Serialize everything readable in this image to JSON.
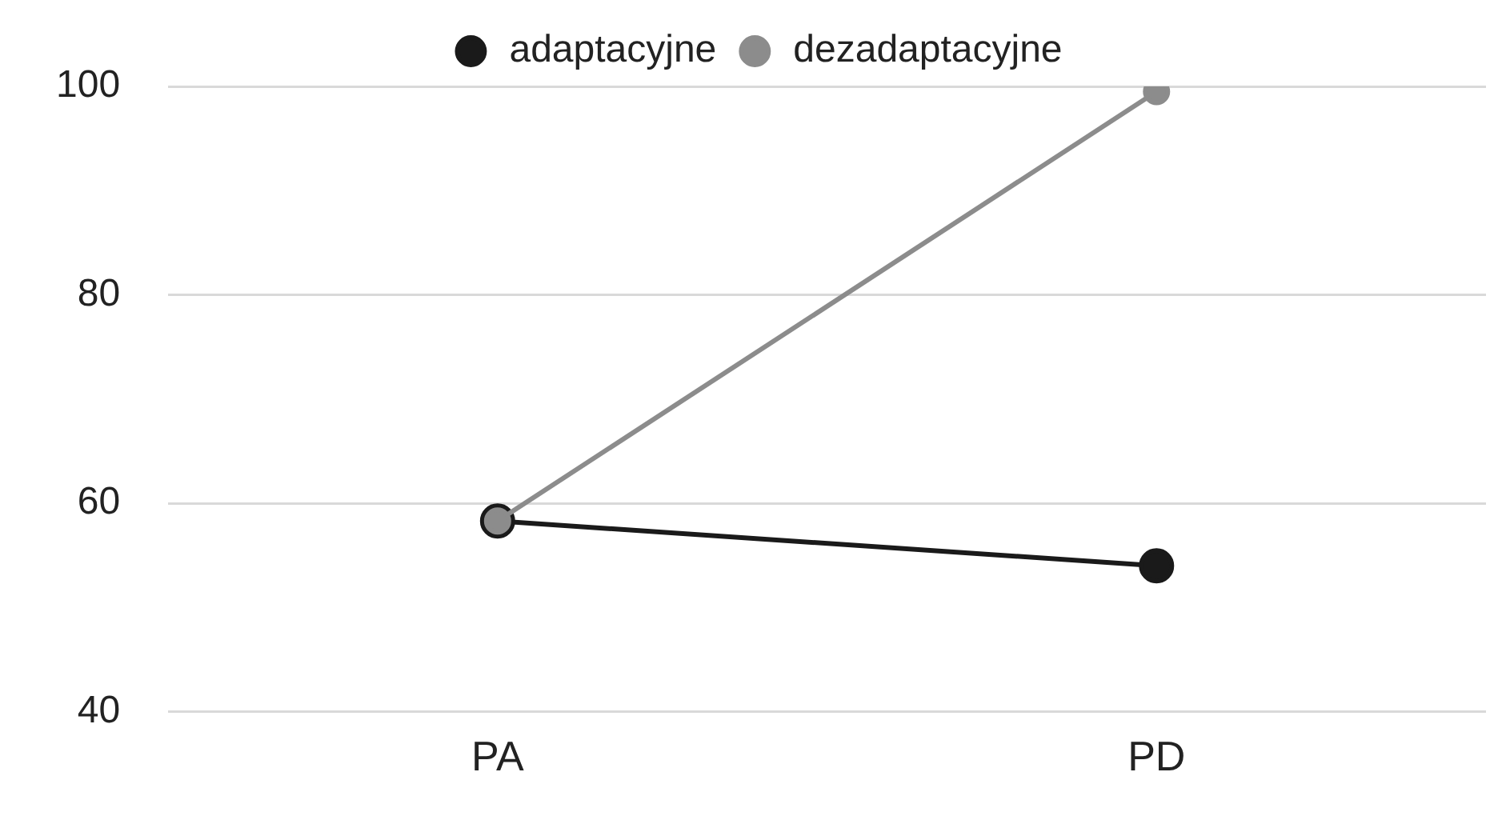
{
  "chart_data": {
    "type": "line",
    "categories": [
      "PA",
      "PD"
    ],
    "series": [
      {
        "name": "adaptacyjne",
        "color": "#1a1a1a",
        "values": [
          58.3,
          54
        ]
      },
      {
        "name": "dezadaptacyjne",
        "color": "#8c8c8c",
        "values": [
          58.3,
          99.5
        ]
      }
    ],
    "ylim": [
      40,
      100
    ],
    "yticks": [
      40,
      60,
      80,
      100
    ],
    "grid": "y",
    "legend": "top",
    "marker": "circle",
    "line_style": "solid"
  }
}
